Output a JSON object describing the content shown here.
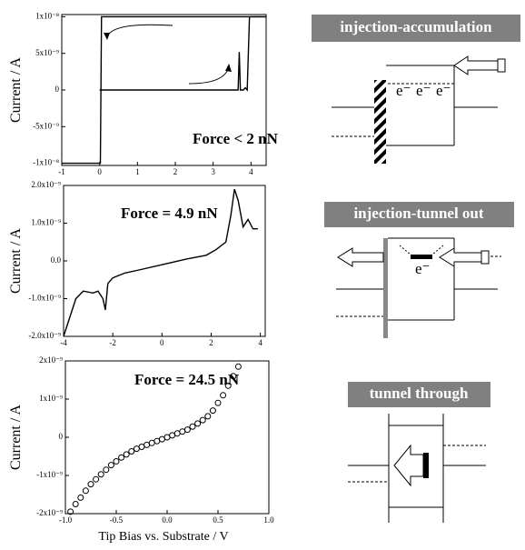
{
  "chart_data": [
    {
      "type": "line",
      "ylabel": "Current / A",
      "annotation": "Force < 2 nN",
      "xlim": [
        -1,
        4.4
      ],
      "ylim": [
        -1.03e-08,
        1.03e-08
      ],
      "xticks": [
        -1,
        0,
        1,
        2,
        3,
        4
      ],
      "yticks": [
        {
          "value": 1e-08,
          "label": "1x10⁻⁸"
        },
        {
          "value": 5e-09,
          "label": "5x10⁻⁹"
        },
        0,
        {
          "value": -5e-09,
          "label": "-5x10⁻⁹"
        },
        {
          "value": -1e-08,
          "label": "-1x10⁻⁸"
        }
      ],
      "series": [
        {
          "color": "#000000",
          "x": [
            -1,
            0.02,
            0.05,
            4.4
          ],
          "values": [
            -1e-08,
            -1e-08,
            1e-08,
            1e-08
          ]
        },
        {
          "color": "#000000",
          "x": [
            0,
            3.6,
            3.66,
            3.69,
            3.72,
            3.8,
            3.85,
            3.9,
            3.96,
            4.4
          ],
          "values": [
            0,
            0,
            0,
            5.2e-09,
            0,
            0,
            3e-10,
            0,
            1e-08,
            1e-08
          ]
        }
      ]
    },
    {
      "type": "line",
      "ylabel": "Current / A",
      "annotation": "Force = 4.9 nN",
      "xlim": [
        -4,
        4.2
      ],
      "ylim": [
        -2e-09,
        2e-09
      ],
      "xticks": [
        -4,
        -2,
        0,
        2,
        4
      ],
      "yticks": [
        {
          "value": 2e-09,
          "label": "2.0x10⁻⁹"
        },
        {
          "value": 1e-09,
          "label": "1.0x10⁻⁹"
        },
        {
          "value": 0,
          "label": "0.0"
        },
        {
          "value": -1e-09,
          "label": "-1.0x10⁻⁹"
        },
        {
          "value": -2e-09,
          "label": "-2.0x10⁻⁹"
        }
      ],
      "series": [
        {
          "color": "#000000",
          "x": [
            -4,
            -3.7,
            -3.5,
            -3.2,
            -2.8,
            -2.6,
            -2.4,
            -2.3,
            -2.2,
            -2.0,
            -1.5,
            -1.0,
            0,
            1.0,
            1.8,
            2.2,
            2.6,
            2.8,
            2.95,
            3.1,
            3.3,
            3.5,
            3.7,
            3.9
          ],
          "values": [
            -2e-09,
            -1.4e-09,
            -1e-09,
            -8e-10,
            -8.5e-10,
            -8e-10,
            -1e-09,
            -1.3e-09,
            -6e-10,
            -4.5e-10,
            -3.2e-10,
            -2.5e-10,
            -1e-10,
            5e-11,
            1.5e-10,
            3e-10,
            5e-10,
            1.2e-09,
            1.9e-09,
            1.6e-09,
            9e-10,
            1.1e-09,
            8.5e-10,
            8.5e-10
          ]
        }
      ]
    },
    {
      "type": "scatter",
      "ylabel": "Current / A",
      "annotation": "Force = 24.5 nN",
      "xlim": [
        -1,
        1
      ],
      "ylim": [
        -2e-09,
        2e-09
      ],
      "xticks": [
        {
          "value": -1,
          "label": "-1.0"
        },
        -0.5,
        {
          "value": 0,
          "label": "0.0"
        },
        0.5,
        {
          "value": 1,
          "label": "1.0"
        }
      ],
      "yticks": [
        {
          "value": 2e-09,
          "label": "2x10⁻⁹"
        },
        {
          "value": 1e-09,
          "label": "1x10⁻⁹"
        },
        0,
        {
          "value": -1e-09,
          "label": "-1x10⁻⁹"
        },
        {
          "value": -2e-09,
          "label": "-2x10⁻⁹"
        }
      ],
      "series": [
        {
          "color": "#000000",
          "x": [
            -0.95,
            -0.9,
            -0.85,
            -0.8,
            -0.75,
            -0.7,
            -0.65,
            -0.6,
            -0.55,
            -0.5,
            -0.45,
            -0.4,
            -0.35,
            -0.3,
            -0.25,
            -0.2,
            -0.15,
            -0.1,
            -0.05,
            0,
            0.05,
            0.1,
            0.15,
            0.2,
            0.25,
            0.3,
            0.35,
            0.4,
            0.45,
            0.5,
            0.55,
            0.6,
            0.65,
            0.7
          ],
          "values": [
            -1.95e-09,
            -1.75e-09,
            -1.58e-09,
            -1.4e-09,
            -1.23e-09,
            -1.1e-09,
            -9.7e-10,
            -8.5e-10,
            -7.3e-10,
            -6.3e-10,
            -5.3e-10,
            -4.5e-10,
            -3.7e-10,
            -3e-10,
            -2.5e-10,
            -2e-10,
            -1.5e-10,
            -1e-10,
            -5e-11,
            0,
            5e-11,
            1e-10,
            1.5e-10,
            2e-10,
            2.8e-10,
            3.6e-10,
            4.5e-10,
            5.5e-10,
            7e-10,
            9e-10,
            1.1e-09,
            1.35e-09,
            1.6e-09,
            1.85e-09
          ]
        }
      ]
    }
  ],
  "x_label": "Tip Bias vs. Substrate / V",
  "diagrams": [
    {
      "title": "injection-accumulation",
      "labels": [
        "e⁻",
        "e⁻",
        "e⁻"
      ]
    },
    {
      "title": "injection-tunnel out",
      "labels": [
        "e⁻"
      ]
    },
    {
      "title": "tunnel through"
    }
  ]
}
